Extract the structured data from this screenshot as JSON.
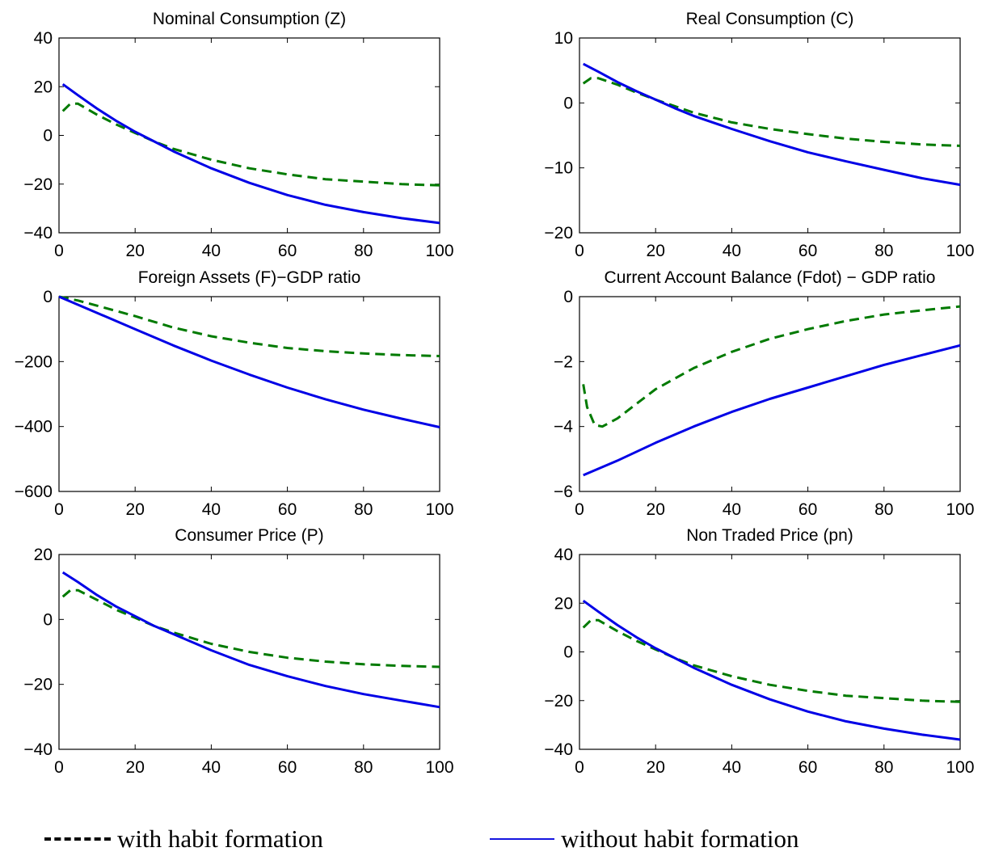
{
  "colors": {
    "with_habit": "#007a00",
    "without_habit": "#0000e6"
  },
  "legend": {
    "with_habit": "with habit formation",
    "without_habit": "without habit formation"
  },
  "chart_data": [
    {
      "type": "line",
      "title": "Nominal Consumption (Z)",
      "xlim": [
        0,
        100
      ],
      "ylim": [
        -40,
        40
      ],
      "xticks": [
        0,
        20,
        40,
        60,
        80,
        100
      ],
      "yticks": [
        -40,
        -20,
        0,
        20,
        40
      ],
      "series": [
        {
          "name": "with habit formation",
          "style": "dashed",
          "x": [
            1,
            3,
            5,
            10,
            15,
            20,
            25,
            30,
            40,
            50,
            60,
            70,
            80,
            90,
            100
          ],
          "y": [
            10,
            13,
            13,
            8.5,
            4.5,
            1,
            -2.5,
            -5.5,
            -10,
            -13.5,
            -16,
            -18,
            -19,
            -20,
            -20.5
          ]
        },
        {
          "name": "without habit formation",
          "style": "solid",
          "x": [
            1,
            5,
            10,
            15,
            20,
            25,
            30,
            40,
            50,
            60,
            70,
            80,
            90,
            100
          ],
          "y": [
            21,
            16.5,
            11,
            6,
            1.5,
            -2.5,
            -6.5,
            -13.5,
            -19.5,
            -24.5,
            -28.5,
            -31.5,
            -34,
            -36
          ]
        }
      ]
    },
    {
      "type": "line",
      "title": "Real Consumption (C)",
      "xlim": [
        0,
        100
      ],
      "ylim": [
        -20,
        10
      ],
      "xticks": [
        0,
        20,
        40,
        60,
        80,
        100
      ],
      "yticks": [
        -20,
        -10,
        0,
        10
      ],
      "series": [
        {
          "name": "with habit formation",
          "style": "dashed",
          "x": [
            1,
            3,
            5,
            10,
            15,
            20,
            25,
            30,
            40,
            50,
            60,
            70,
            80,
            90,
            100
          ],
          "y": [
            3,
            3.8,
            3.8,
            2.8,
            1.6,
            0.5,
            -0.5,
            -1.5,
            -3,
            -4,
            -4.8,
            -5.5,
            -6,
            -6.4,
            -6.6
          ]
        },
        {
          "name": "without habit formation",
          "style": "solid",
          "x": [
            1,
            5,
            10,
            15,
            20,
            25,
            30,
            40,
            50,
            60,
            70,
            80,
            90,
            100
          ],
          "y": [
            6,
            4.8,
            3.2,
            1.8,
            0.5,
            -0.8,
            -2,
            -4,
            -5.9,
            -7.6,
            -9,
            -10.3,
            -11.6,
            -12.6
          ]
        }
      ]
    },
    {
      "type": "line",
      "title": "Foreign Assets (F)−GDP ratio",
      "xlim": [
        0,
        100
      ],
      "ylim": [
        -600,
        0
      ],
      "xticks": [
        0,
        20,
        40,
        60,
        80,
        100
      ],
      "yticks": [
        -600,
        -400,
        -200,
        0
      ],
      "series": [
        {
          "name": "with habit formation",
          "style": "dashed",
          "x": [
            0,
            5,
            10,
            20,
            30,
            40,
            50,
            60,
            70,
            80,
            90,
            100
          ],
          "y": [
            0,
            -12,
            -28,
            -60,
            -95,
            -122,
            -142,
            -158,
            -168,
            -175,
            -180,
            -183
          ]
        },
        {
          "name": "without habit formation",
          "style": "solid",
          "x": [
            0,
            10,
            20,
            30,
            40,
            50,
            60,
            70,
            80,
            90,
            100
          ],
          "y": [
            0,
            -50,
            -100,
            -150,
            -197,
            -240,
            -280,
            -316,
            -348,
            -376,
            -402
          ]
        }
      ]
    },
    {
      "type": "line",
      "title": "Current Account Balance (Fdot) − GDP ratio",
      "xlim": [
        0,
        100
      ],
      "ylim": [
        -6,
        0
      ],
      "xticks": [
        0,
        20,
        40,
        60,
        80,
        100
      ],
      "yticks": [
        -6,
        -4,
        -2,
        0
      ],
      "series": [
        {
          "name": "with habit formation",
          "style": "dashed",
          "x": [
            1,
            2,
            4,
            6,
            10,
            15,
            20,
            30,
            40,
            50,
            60,
            70,
            80,
            90,
            100
          ],
          "y": [
            -2.7,
            -3.4,
            -3.95,
            -4.0,
            -3.75,
            -3.3,
            -2.85,
            -2.2,
            -1.7,
            -1.3,
            -1.0,
            -0.75,
            -0.55,
            -0.42,
            -0.3
          ]
        },
        {
          "name": "without habit formation",
          "style": "solid",
          "x": [
            1,
            10,
            20,
            30,
            40,
            50,
            60,
            70,
            80,
            90,
            100
          ],
          "y": [
            -5.5,
            -5.05,
            -4.5,
            -4.0,
            -3.55,
            -3.15,
            -2.8,
            -2.45,
            -2.1,
            -1.8,
            -1.5
          ]
        }
      ]
    },
    {
      "type": "line",
      "title": "Consumer Price (P)",
      "xlim": [
        0,
        100
      ],
      "ylim": [
        -40,
        20
      ],
      "xticks": [
        0,
        20,
        40,
        60,
        80,
        100
      ],
      "yticks": [
        -40,
        -20,
        0,
        20
      ],
      "series": [
        {
          "name": "with habit formation",
          "style": "dashed",
          "x": [
            1,
            3,
            5,
            10,
            15,
            20,
            25,
            30,
            40,
            50,
            60,
            70,
            80,
            90,
            100
          ],
          "y": [
            7,
            9,
            9,
            6,
            3,
            0.5,
            -2,
            -4,
            -7.5,
            -10,
            -11.8,
            -13,
            -13.8,
            -14.3,
            -14.6
          ]
        },
        {
          "name": "without habit formation",
          "style": "solid",
          "x": [
            1,
            5,
            10,
            15,
            20,
            25,
            30,
            40,
            50,
            60,
            70,
            80,
            90,
            100
          ],
          "y": [
            14.5,
            11.5,
            7.5,
            4,
            1,
            -2,
            -4.5,
            -9.5,
            -14,
            -17.5,
            -20.5,
            -23,
            -25,
            -27
          ]
        }
      ]
    },
    {
      "type": "line",
      "title": "Non Traded Price (pn)",
      "xlim": [
        0,
        100
      ],
      "ylim": [
        -40,
        40
      ],
      "xticks": [
        0,
        20,
        40,
        60,
        80,
        100
      ],
      "yticks": [
        -40,
        -20,
        0,
        20,
        40
      ],
      "series": [
        {
          "name": "with habit formation",
          "style": "dashed",
          "x": [
            1,
            3,
            5,
            10,
            15,
            20,
            25,
            30,
            40,
            50,
            60,
            70,
            80,
            90,
            100
          ],
          "y": [
            10,
            13,
            13,
            8.5,
            4.5,
            1,
            -2.5,
            -5.5,
            -10,
            -13.5,
            -16,
            -18,
            -19,
            -20,
            -20.5
          ]
        },
        {
          "name": "without habit formation",
          "style": "solid",
          "x": [
            1,
            5,
            10,
            15,
            20,
            25,
            30,
            40,
            50,
            60,
            70,
            80,
            90,
            100
          ],
          "y": [
            21,
            16.5,
            11,
            6,
            1.5,
            -2.5,
            -6.5,
            -13.5,
            -19.5,
            -24.5,
            -28.5,
            -31.5,
            -34,
            -36
          ]
        }
      ]
    }
  ]
}
